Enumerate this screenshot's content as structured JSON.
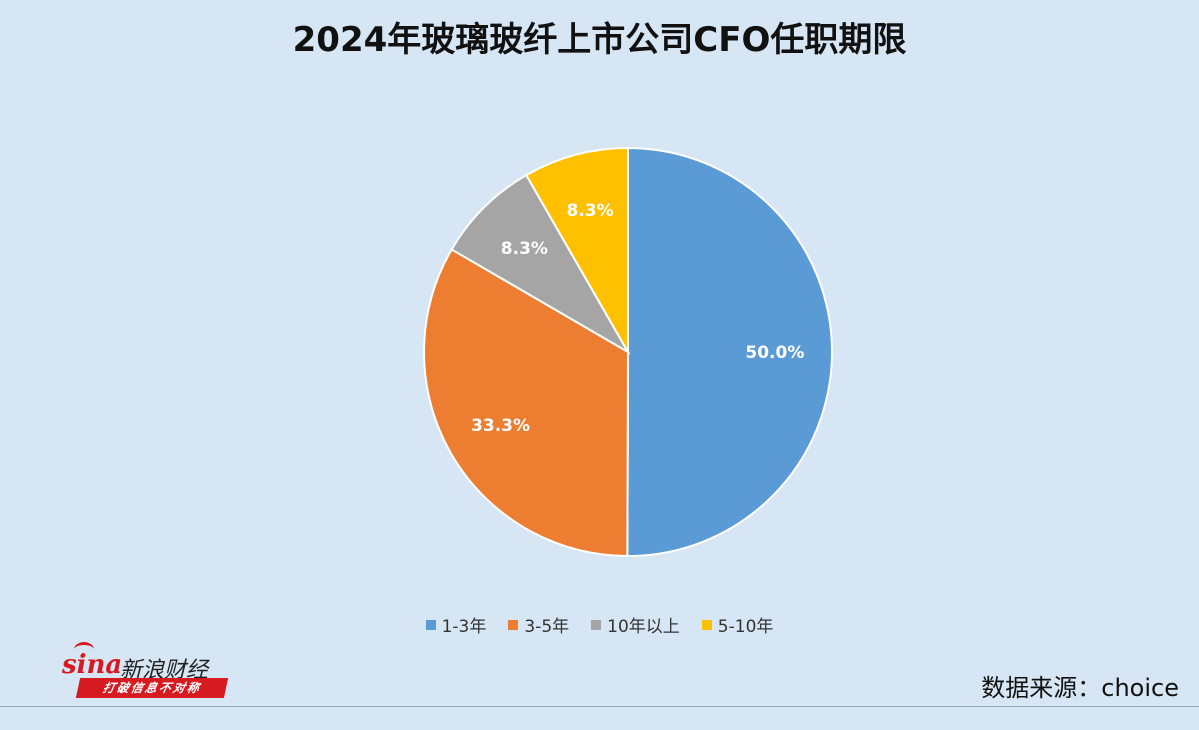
{
  "chart_data": {
    "type": "pie",
    "title": "2024年玻璃玻纤上市公司CFO任职期限",
    "categories": [
      "1-3年",
      "3-5年",
      "10年以上",
      "5-10年"
    ],
    "values": [
      50.0,
      33.3,
      8.3,
      8.3
    ],
    "labels": [
      "50.0%",
      "33.3%",
      "8.3%",
      "8.3%"
    ],
    "colors": [
      "#5b9bd5",
      "#ed7d31",
      "#a5a5a5",
      "#ffc000"
    ],
    "legend_position": "bottom",
    "start_angle": "12-o'clock",
    "direction": "clockwise"
  },
  "branding": {
    "logo_text": "sina",
    "logo_cn": "新浪财经",
    "slogan": "打破信息不对称"
  },
  "source": "数据来源：choice"
}
